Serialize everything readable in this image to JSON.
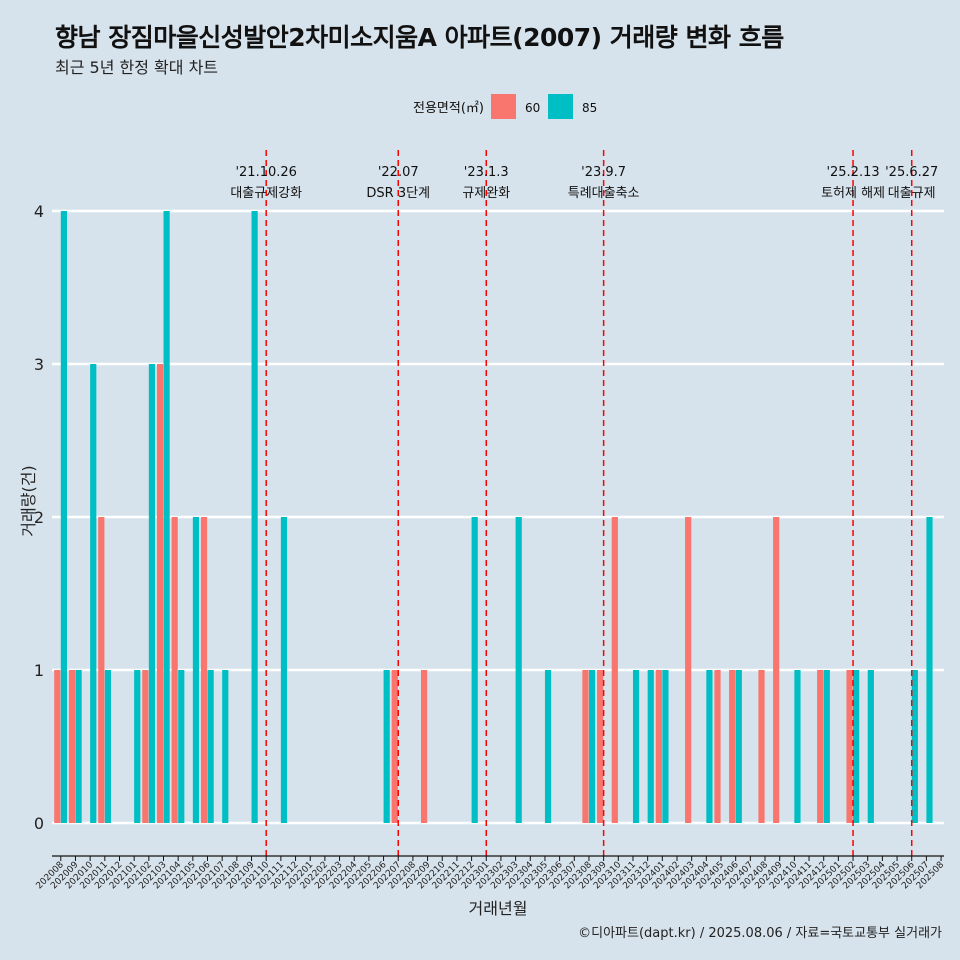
{
  "title": "향남 장짐마을신성발안2차미소지움A 아파트(2007) 거래량 변화 흐름",
  "subtitle": "최근 5년 한정 확대 차트",
  "caption": "©디아파트(dapt.kr) / 2025.08.06 / 자료=국토교통부 실거래가",
  "colors": {
    "s60": "#f8766d",
    "s85": "#00bfc4",
    "background": "#d7e3ec",
    "grid": "#ffffff",
    "event_line": "#ff0000"
  },
  "chart_data": {
    "type": "bar",
    "xlabel": "거래년월",
    "ylabel": "거래량(건)",
    "ylim": [
      0,
      4
    ],
    "yticks": [
      0,
      1,
      2,
      3,
      4
    ],
    "grid": true,
    "legend": {
      "title": "전용면적(㎡)",
      "position": "top"
    },
    "categories": [
      "202008",
      "202009",
      "202010",
      "202011",
      "202012",
      "202101",
      "202102",
      "202103",
      "202104",
      "202105",
      "202106",
      "202107",
      "202108",
      "202109",
      "202110",
      "202111",
      "202112",
      "202201",
      "202202",
      "202203",
      "202204",
      "202205",
      "202206",
      "202207",
      "202208",
      "202209",
      "202210",
      "202211",
      "202212",
      "202301",
      "202302",
      "202303",
      "202304",
      "202305",
      "202306",
      "202307",
      "202308",
      "202309",
      "202310",
      "202311",
      "202312",
      "202401",
      "202402",
      "202403",
      "202404",
      "202405",
      "202406",
      "202407",
      "202408",
      "202409",
      "202410",
      "202411",
      "202412",
      "202501",
      "202502",
      "202503",
      "202504",
      "202505",
      "202506",
      "202507",
      "202508"
    ],
    "series": [
      {
        "name": "60",
        "values": [
          1,
          1,
          0,
          2,
          0,
          0,
          1,
          3,
          2,
          0,
          2,
          0,
          0,
          0,
          0,
          0,
          0,
          0,
          0,
          0,
          0,
          0,
          0,
          1,
          0,
          1,
          0,
          0,
          0,
          0,
          0,
          0,
          0,
          0,
          0,
          0,
          1,
          1,
          2,
          0,
          0,
          1,
          0,
          2,
          0,
          1,
          1,
          0,
          1,
          2,
          0,
          0,
          1,
          0,
          1,
          0,
          0,
          0,
          0,
          0,
          0
        ]
      },
      {
        "name": "85",
        "values": [
          4,
          1,
          3,
          1,
          0,
          1,
          3,
          4,
          1,
          2,
          1,
          1,
          0,
          4,
          0,
          2,
          0,
          0,
          0,
          0,
          0,
          0,
          1,
          0,
          0,
          0,
          0,
          0,
          2,
          0,
          0,
          2,
          0,
          1,
          0,
          0,
          1,
          0,
          0,
          1,
          1,
          1,
          0,
          0,
          1,
          0,
          1,
          0,
          0,
          0,
          1,
          0,
          1,
          0,
          1,
          1,
          0,
          0,
          1,
          2,
          0
        ]
      }
    ],
    "events": [
      {
        "date": "'21.10.26",
        "label": "대출규제강화",
        "month": "202110"
      },
      {
        "date": "'22.07",
        "label": "DSR 3단계",
        "month": "202207"
      },
      {
        "date": "'23.1.3",
        "label": "규제완화",
        "month": "202301"
      },
      {
        "date": "'23.9.7",
        "label": "특례대출축소",
        "month": "202309"
      },
      {
        "date": "'25.2.13",
        "label": "토허제 해제",
        "month": "202502"
      },
      {
        "date": "'25.6.27",
        "label": "대출규제",
        "month": "202506"
      }
    ]
  }
}
